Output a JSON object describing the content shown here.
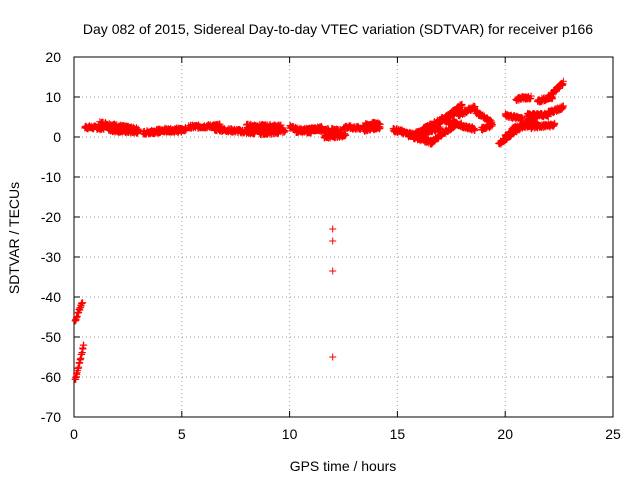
{
  "chart_data": {
    "type": "scatter",
    "title": "Day 082 of 2015, Sidereal Day-to-day VTEC variation (SDTVAR) for receiver p166",
    "xlabel": "GPS time / hours",
    "ylabel": "SDTVAR / TECUs",
    "xlim": [
      0,
      25
    ],
    "ylim": [
      -70,
      20
    ],
    "xticks": [
      0,
      5,
      10,
      15,
      20,
      25
    ],
    "yticks": [
      20,
      10,
      0,
      -10,
      -20,
      -30,
      -40,
      -50,
      -60,
      -70
    ],
    "grid": true,
    "marker": "+",
    "series": [
      {
        "name": "SDTVAR",
        "color": "#ff0000",
        "segments": [
          {
            "x": [
              0.05,
              0.4
            ],
            "y": [
              -46,
              -41
            ]
          },
          {
            "x": [
              0.05,
              0.45
            ],
            "y": [
              -61,
              -52
            ]
          },
          {
            "x": [
              0.5,
              1.4
            ],
            "y": [
              2.5,
              2.2
            ]
          },
          {
            "x": [
              1.2,
              3.0
            ],
            "y": [
              3.5,
              1.8
            ]
          },
          {
            "x": [
              1.6,
              3.0
            ],
            "y": [
              1.8,
              1.2
            ]
          },
          {
            "x": [
              3.2,
              4.0
            ],
            "y": [
              1.0,
              1.6
            ]
          },
          {
            "x": [
              3.5,
              5.2
            ],
            "y": [
              1.2,
              2.0
            ]
          },
          {
            "x": [
              4.2,
              5.0
            ],
            "y": [
              1.8,
              1.5
            ]
          },
          {
            "x": [
              5.3,
              6.8
            ],
            "y": [
              2.5,
              2.8
            ]
          },
          {
            "x": [
              6.5,
              7.6
            ],
            "y": [
              2.0,
              1.5
            ]
          },
          {
            "x": [
              7.6,
              8.4
            ],
            "y": [
              1.5,
              1.0
            ]
          },
          {
            "x": [
              8.0,
              9.6
            ],
            "y": [
              2.8,
              2.6
            ]
          },
          {
            "x": [
              8.3,
              9.8
            ],
            "y": [
              2.0,
              1.5
            ]
          },
          {
            "x": [
              8.6,
              9.5
            ],
            "y": [
              1.0,
              1.2
            ]
          },
          {
            "x": [
              10.0,
              11.0
            ],
            "y": [
              2.5,
              1.0
            ]
          },
          {
            "x": [
              10.3,
              11.5
            ],
            "y": [
              1.5,
              2.2
            ]
          },
          {
            "x": [
              11.0,
              12.4
            ],
            "y": [
              2.0,
              1.5
            ]
          },
          {
            "x": [
              11.6,
              12.6
            ],
            "y": [
              0.0,
              0.5
            ]
          },
          {
            "x": [
              12.5,
              13.3
            ],
            "y": [
              2.5,
              2.2
            ]
          },
          {
            "x": [
              13.4,
              14.2
            ],
            "y": [
              2.8,
              3.5
            ]
          },
          {
            "x": [
              13.4,
              14.2
            ],
            "y": [
              1.8,
              2.5
            ]
          },
          {
            "x": [
              14.8,
              15.3
            ],
            "y": [
              1.8,
              1.2
            ]
          },
          {
            "x": [
              15.2,
              16.3
            ],
            "y": [
              1.2,
              0.0
            ]
          },
          {
            "x": [
              15.5,
              16.6
            ],
            "y": [
              0.5,
              -1.5
            ]
          },
          {
            "x": [
              15.8,
              17.0
            ],
            "y": [
              0.8,
              2.2
            ]
          },
          {
            "x": [
              16.5,
              17.8
            ],
            "y": [
              -1.5,
              3.5
            ]
          },
          {
            "x": [
              16.2,
              17.8
            ],
            "y": [
              2.0,
              6.5
            ]
          },
          {
            "x": [
              16.8,
              18.0
            ],
            "y": [
              3.0,
              8.0
            ]
          },
          {
            "x": [
              17.2,
              18.0
            ],
            "y": [
              4.0,
              3.0
            ]
          },
          {
            "x": [
              17.8,
              18.6
            ],
            "y": [
              5.5,
              7.5
            ]
          },
          {
            "x": [
              18.6,
              19.4
            ],
            "y": [
              6.5,
              3.5
            ]
          },
          {
            "x": [
              18.0,
              18.6
            ],
            "y": [
              2.5,
              2.0
            ]
          },
          {
            "x": [
              18.9,
              19.4
            ],
            "y": [
              2.0,
              3.0
            ]
          },
          {
            "x": [
              19.7,
              21.2
            ],
            "y": [
              -1.8,
              4.5
            ]
          },
          {
            "x": [
              20.0,
              21.5
            ],
            "y": [
              0.2,
              5.2
            ]
          },
          {
            "x": [
              20.0,
              20.8
            ],
            "y": [
              5.5,
              4.5
            ]
          },
          {
            "x": [
              20.3,
              21.5
            ],
            "y": [
              2.0,
              3.5
            ]
          },
          {
            "x": [
              20.5,
              21.2
            ],
            "y": [
              9.5,
              10.0
            ]
          },
          {
            "x": [
              21.0,
              22.0
            ],
            "y": [
              5.5,
              5.5
            ]
          },
          {
            "x": [
              21.5,
              22.2
            ],
            "y": [
              9.0,
              10.0
            ]
          },
          {
            "x": [
              21.2,
              22.3
            ],
            "y": [
              2.5,
              3.0
            ]
          },
          {
            "x": [
              22.0,
              22.7
            ],
            "y": [
              10.0,
              13.5
            ]
          },
          {
            "x": [
              22.0,
              22.7
            ],
            "y": [
              6.0,
              7.5
            ]
          }
        ],
        "points": [
          {
            "x": 12.0,
            "y": -23
          },
          {
            "x": 12.0,
            "y": -26
          },
          {
            "x": 12.0,
            "y": -33.5
          },
          {
            "x": 12.0,
            "y": -55
          }
        ]
      }
    ]
  }
}
